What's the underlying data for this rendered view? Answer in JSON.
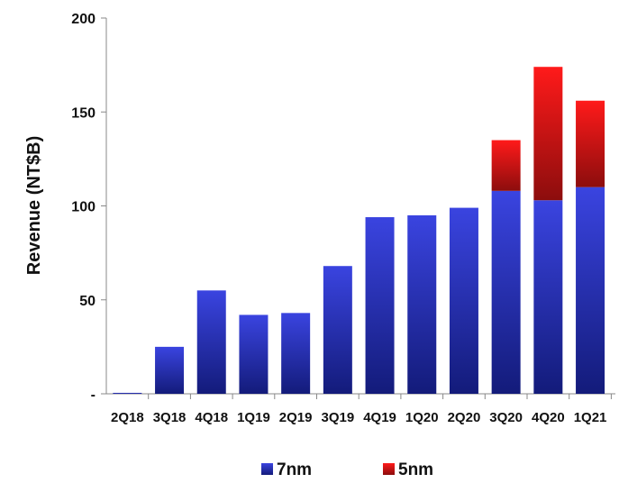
{
  "chart_data": {
    "type": "bar",
    "stacked": true,
    "categories": [
      "2Q18",
      "3Q18",
      "4Q18",
      "1Q19",
      "2Q19",
      "3Q19",
      "4Q19",
      "1Q20",
      "2Q20",
      "3Q20",
      "4Q20",
      "1Q21"
    ],
    "series": [
      {
        "name": "7nm",
        "color": "#1f2eb8",
        "values": [
          0.5,
          25,
          55,
          42,
          43,
          68,
          94,
          95,
          99,
          108,
          103,
          110
        ]
      },
      {
        "name": "5nm",
        "color": "#e01010",
        "values": [
          0,
          0,
          0,
          0,
          0,
          0,
          0,
          0,
          0,
          27,
          71,
          46
        ]
      }
    ],
    "ylabel": "Revenue (NT$B)",
    "xlabel": "",
    "ylim": [
      0,
      200
    ],
    "yticks": [
      0,
      50,
      100,
      150,
      200
    ],
    "ytick_labels": [
      "-",
      "50",
      "100",
      "150",
      "200"
    ],
    "legend_position": "bottom",
    "grid": false
  }
}
